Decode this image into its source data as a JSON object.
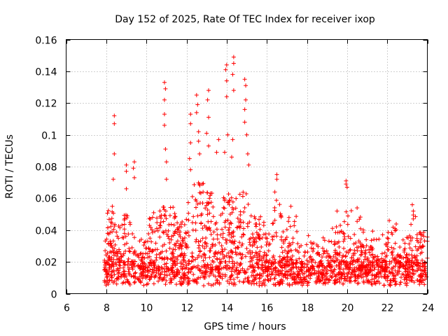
{
  "chart_data": {
    "type": "scatter",
    "title": "Day 152 of 2025, Rate Of TEC Index for receiver ixop",
    "xlabel": "GPS time / hours",
    "ylabel": "ROTI / TECUs",
    "xlim": [
      6,
      24
    ],
    "ylim": [
      0,
      0.16
    ],
    "x_ticks": [
      6,
      8,
      10,
      12,
      14,
      16,
      18,
      20,
      22,
      24
    ],
    "y_ticks": [
      0,
      0.02,
      0.04,
      0.06,
      0.08,
      0.1,
      0.12,
      0.14,
      0.16
    ],
    "x_tick_labels": [
      "6",
      "8",
      "10",
      "12",
      "14",
      "16",
      "18",
      "20",
      "22",
      "24"
    ],
    "y_tick_labels": [
      "0",
      "0.02",
      "0.04",
      "0.06",
      "0.08",
      "0.1",
      "0.12",
      "0.14",
      "0.16"
    ],
    "grid": true,
    "marker": "+",
    "color": "#ff0000",
    "series": [
      {
        "name": "ROTI",
        "time_range_hours": [
          7.9,
          24.0
        ],
        "baseline_range": [
          0.005,
          0.03
        ],
        "notable_points": [
          {
            "x": 8.4,
            "y": 0.112
          },
          {
            "x": 8.4,
            "y": 0.107
          },
          {
            "x": 8.4,
            "y": 0.088
          },
          {
            "x": 8.35,
            "y": 0.072
          },
          {
            "x": 8.3,
            "y": 0.055
          },
          {
            "x": 9.0,
            "y": 0.081
          },
          {
            "x": 9.0,
            "y": 0.077
          },
          {
            "x": 9.0,
            "y": 0.066
          },
          {
            "x": 9.4,
            "y": 0.083
          },
          {
            "x": 9.35,
            "y": 0.079
          },
          {
            "x": 9.4,
            "y": 0.073
          },
          {
            "x": 10.9,
            "y": 0.133
          },
          {
            "x": 10.95,
            "y": 0.129
          },
          {
            "x": 10.9,
            "y": 0.122
          },
          {
            "x": 10.9,
            "y": 0.113
          },
          {
            "x": 10.9,
            "y": 0.106
          },
          {
            "x": 10.95,
            "y": 0.091
          },
          {
            "x": 11.0,
            "y": 0.083
          },
          {
            "x": 11.0,
            "y": 0.072
          },
          {
            "x": 12.2,
            "y": 0.113
          },
          {
            "x": 12.2,
            "y": 0.107
          },
          {
            "x": 12.2,
            "y": 0.095
          },
          {
            "x": 12.15,
            "y": 0.085
          },
          {
            "x": 12.2,
            "y": 0.078
          },
          {
            "x": 12.5,
            "y": 0.125
          },
          {
            "x": 12.55,
            "y": 0.119
          },
          {
            "x": 12.5,
            "y": 0.114
          },
          {
            "x": 12.6,
            "y": 0.102
          },
          {
            "x": 12.6,
            "y": 0.096
          },
          {
            "x": 12.65,
            "y": 0.088
          },
          {
            "x": 13.1,
            "y": 0.128
          },
          {
            "x": 13.05,
            "y": 0.122
          },
          {
            "x": 13.1,
            "y": 0.111
          },
          {
            "x": 13.0,
            "y": 0.101
          },
          {
            "x": 13.1,
            "y": 0.093
          },
          {
            "x": 13.6,
            "y": 0.097
          },
          {
            "x": 13.5,
            "y": 0.089
          },
          {
            "x": 14.0,
            "y": 0.144
          },
          {
            "x": 13.95,
            "y": 0.141
          },
          {
            "x": 14.0,
            "y": 0.134
          },
          {
            "x": 14.0,
            "y": 0.124
          },
          {
            "x": 14.05,
            "y": 0.1
          },
          {
            "x": 13.9,
            "y": 0.089
          },
          {
            "x": 14.35,
            "y": 0.149
          },
          {
            "x": 14.35,
            "y": 0.145
          },
          {
            "x": 14.3,
            "y": 0.138
          },
          {
            "x": 14.35,
            "y": 0.128
          },
          {
            "x": 14.3,
            "y": 0.097
          },
          {
            "x": 14.25,
            "y": 0.086
          },
          {
            "x": 14.9,
            "y": 0.135
          },
          {
            "x": 14.95,
            "y": 0.131
          },
          {
            "x": 14.95,
            "y": 0.122
          },
          {
            "x": 14.9,
            "y": 0.116
          },
          {
            "x": 14.9,
            "y": 0.108
          },
          {
            "x": 15.0,
            "y": 0.1
          },
          {
            "x": 15.05,
            "y": 0.088
          },
          {
            "x": 15.1,
            "y": 0.081
          },
          {
            "x": 16.5,
            "y": 0.075
          },
          {
            "x": 16.5,
            "y": 0.072
          },
          {
            "x": 16.4,
            "y": 0.064
          },
          {
            "x": 17.2,
            "y": 0.055
          },
          {
            "x": 19.5,
            "y": 0.052
          },
          {
            "x": 19.95,
            "y": 0.071
          },
          {
            "x": 19.95,
            "y": 0.069
          },
          {
            "x": 20.0,
            "y": 0.067
          },
          {
            "x": 20.5,
            "y": 0.054
          },
          {
            "x": 22.1,
            "y": 0.046
          },
          {
            "x": 23.25,
            "y": 0.056
          },
          {
            "x": 23.3,
            "y": 0.052
          },
          {
            "x": 24.0,
            "y": 0.033
          }
        ]
      }
    ]
  }
}
